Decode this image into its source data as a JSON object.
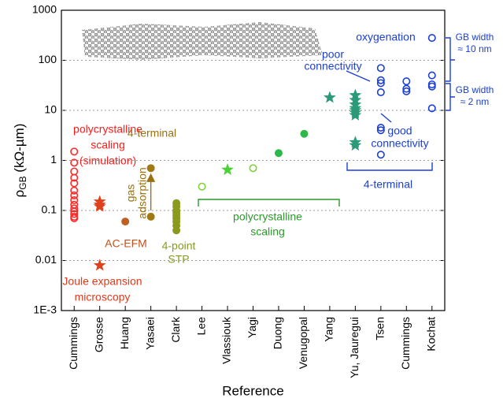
{
  "chart_data": {
    "type": "scatter",
    "log_y": true,
    "grid": true,
    "x_label": "Reference",
    "y_label": {
      "main": "ρ",
      "sub": "GB",
      "rest": " (kΩ-µm)"
    },
    "categories": [
      "Cummings",
      "Grosse",
      "Huang",
      "Yasaei",
      "Clark",
      "Lee",
      "Vlassiouk",
      "Yagi",
      "Duong",
      "Venugopal",
      "Yang",
      "Yu, Jauregui",
      "Tsen",
      "Cummings",
      "Kochat"
    ],
    "ylim": [
      0.001,
      1000
    ],
    "yticks": [
      {
        "value": 0.001,
        "label": "1E-3"
      },
      0.01,
      0.1,
      1,
      10,
      100,
      1000
    ],
    "series": [
      {
        "color": "#ff2a2a",
        "marker": "circle",
        "filled": false,
        "x": [
          0,
          0,
          0,
          0,
          0,
          0,
          0,
          0,
          0,
          0,
          0,
          0,
          0,
          0
        ],
        "values": [
          1.5,
          0.9,
          0.6,
          0.45,
          0.35,
          0.25,
          0.2,
          0.16,
          0.13,
          0.11,
          0.095,
          0.085,
          0.075,
          0.07
        ]
      },
      {
        "color": "#e0401a",
        "marker": "star",
        "filled": true,
        "x": [
          1,
          1,
          1,
          1
        ],
        "values": [
          0.15,
          0.13,
          0.12,
          0.008
        ]
      },
      {
        "color": "#c0601e",
        "marker": "circle",
        "filled": true,
        "x": [
          2
        ],
        "values": [
          0.06
        ]
      },
      {
        "color": "#a07a10",
        "marker": "circle",
        "filled": true,
        "x": [
          3,
          3
        ],
        "values": [
          0.7,
          0.075
        ]
      },
      {
        "color": "#8a9a1e",
        "marker": "circle",
        "filled": true,
        "x": [
          4,
          4,
          4,
          4,
          4,
          4,
          4,
          4,
          4
        ],
        "values": [
          0.14,
          0.12,
          0.1,
          0.09,
          0.08,
          0.07,
          0.06,
          0.05,
          0.04
        ]
      },
      {
        "color": "#7fd23a",
        "marker": "circle",
        "filled": false,
        "x": [
          5,
          7
        ],
        "values": [
          0.3,
          0.7
        ]
      },
      {
        "color": "#4cd13a",
        "marker": "star",
        "filled": true,
        "x": [
          6
        ],
        "values": [
          0.65
        ]
      },
      {
        "color": "#2fb84a",
        "marker": "circle",
        "filled": true,
        "x": [
          8,
          9
        ],
        "values": [
          1.4,
          3.4
        ]
      },
      {
        "color": "#2a9a78",
        "marker": "star",
        "filled": true,
        "x": [
          10,
          11,
          11,
          11,
          11,
          11,
          11,
          11,
          11,
          11
        ],
        "values": [
          18,
          20,
          16,
          13,
          11,
          10,
          9,
          8,
          2.3,
          2.0
        ]
      },
      {
        "color": "#1a3fd8",
        "marker": "circle",
        "filled": false,
        "x": [
          12,
          12,
          12,
          12,
          12,
          12,
          12,
          13,
          13,
          13,
          14,
          14,
          14,
          14,
          14
        ],
        "values": [
          70,
          40,
          35,
          23,
          4.5,
          4,
          1.3,
          38,
          27,
          24,
          280,
          50,
          33,
          30,
          11
        ]
      }
    ],
    "annotations": [
      {
        "color": "#ff1a1a",
        "lines": [
          "polycrystalline",
          "scaling",
          "(simulation)"
        ]
      },
      {
        "color": "#9a7010",
        "lines": [
          "4-terminal"
        ]
      },
      {
        "color": "#9a7010",
        "lines": [
          "gas",
          "adsorption"
        ]
      },
      {
        "color": "#c0501a",
        "lines": [
          "AC-EFM"
        ]
      },
      {
        "color": "#8a9a1e",
        "lines": [
          "4-point",
          "STP"
        ]
      },
      {
        "color": "#e03a1a",
        "lines": [
          "Joule expansion",
          "microscopy"
        ]
      },
      {
        "color": "#2a9a2a",
        "lines": [
          "polycrystalline",
          "scaling"
        ]
      },
      {
        "color": "#1a3fd8",
        "lines": [
          "poor",
          "connectivity"
        ]
      },
      {
        "color": "#1a3fd8",
        "lines": [
          "good",
          "connectivity"
        ]
      },
      {
        "color": "#1a3fd8",
        "lines": [
          "oxygenation"
        ]
      },
      {
        "color": "#1a3fd8",
        "lines": [
          "4-terminal"
        ]
      },
      {
        "color": "#1a3fd8",
        "lines": [
          "GB width",
          "≈ 10 nm"
        ]
      },
      {
        "color": "#1a3fd8",
        "lines": [
          "GB width",
          "≈ 2 nm"
        ]
      }
    ]
  }
}
